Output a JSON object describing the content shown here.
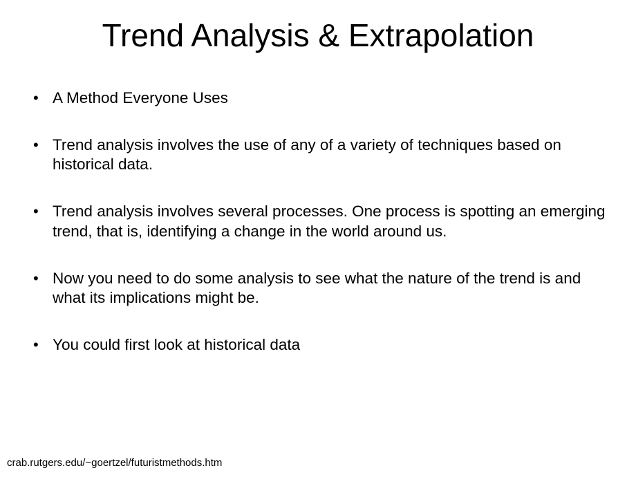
{
  "slide": {
    "title": "Trend Analysis & Extrapolation",
    "bullets": [
      "A Method Everyone Uses",
      "Trend analysis involves the use of any of a variety of techniques based on historical data.",
      "Trend analysis involves several processes. One process is spotting an emerging trend, that is, identifying a change in the world around us.",
      "Now you need to do some analysis to see what the nature of the trend is and what its implications might be.",
      "You could first look at historical data"
    ],
    "footer": "crab.rutgers.edu/~goertzel/futuristmethods.htm"
  },
  "style": {
    "background_color": "#ffffff",
    "text_color": "#000000",
    "title_fontsize": 46,
    "bullet_fontsize": 22.5,
    "footer_fontsize": 15,
    "font_family": "Arial, Helvetica, sans-serif"
  }
}
